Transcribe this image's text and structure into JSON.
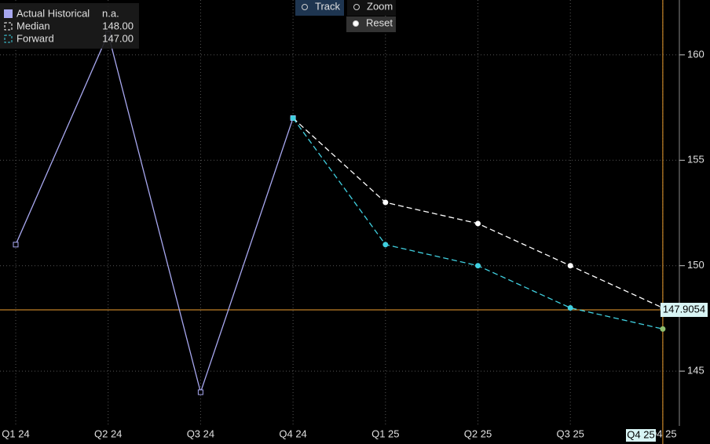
{
  "chart_data": {
    "type": "line",
    "categories": [
      "Q1 24",
      "Q2 24",
      "Q3 24",
      "Q4 24",
      "Q1 25",
      "Q2 25",
      "Q3 25",
      "Q4 25"
    ],
    "series": [
      {
        "name": "Actual Historical",
        "legend_value": "n.a.",
        "color": "#a8a8f0",
        "marker": "square",
        "dashed": false,
        "values": [
          151,
          161,
          144,
          157,
          null,
          null,
          null,
          null
        ]
      },
      {
        "name": "Median",
        "legend_value": "148.00",
        "color": "#ffffff",
        "marker": "circle",
        "dashed": true,
        "values": [
          null,
          null,
          null,
          157,
          153,
          152,
          150,
          148
        ]
      },
      {
        "name": "Forward",
        "legend_value": "147.00",
        "color": "#40d0e0",
        "marker": "circle",
        "dashed": true,
        "values": [
          null,
          null,
          null,
          157,
          151,
          150,
          148,
          147
        ]
      }
    ],
    "ylim": [
      142.4,
      162.6
    ],
    "yticks": [
      145,
      150,
      155,
      160
    ],
    "grid": true,
    "crosshair": {
      "x": "Q4 25",
      "y": 147.9054,
      "color": "#f0a030",
      "highlight_color": "#90c070"
    },
    "buttons": [
      "Track",
      "Zoom",
      "Reset"
    ]
  }
}
